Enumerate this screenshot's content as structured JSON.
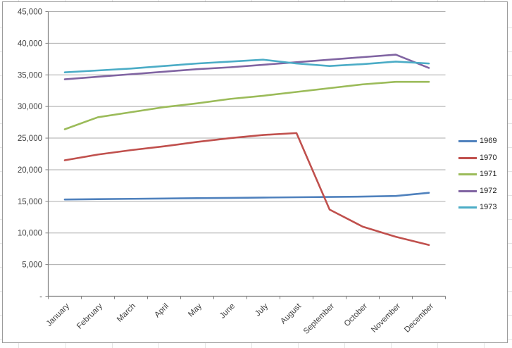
{
  "chart_data": {
    "type": "line",
    "title": "",
    "xlabel": "",
    "ylabel": "",
    "categories": [
      "January",
      "February",
      "March",
      "April",
      "May",
      "June",
      "July",
      "August",
      "September",
      "October",
      "November",
      "December"
    ],
    "series": [
      {
        "name": "1969",
        "color": "#4F81BD",
        "values": [
          15300,
          15350,
          15400,
          15450,
          15500,
          15550,
          15600,
          15650,
          15700,
          15750,
          15850,
          16350
        ]
      },
      {
        "name": "1970",
        "color": "#C0504D",
        "values": [
          21500,
          22400,
          23100,
          23700,
          24400,
          25000,
          25500,
          25800,
          13700,
          11000,
          9400,
          8100
        ]
      },
      {
        "name": "1971",
        "color": "#9BBB59",
        "values": [
          26400,
          28300,
          29100,
          29900,
          30500,
          31200,
          31700,
          32300,
          32900,
          33500,
          33900,
          33900
        ]
      },
      {
        "name": "1972",
        "color": "#8064A2",
        "values": [
          34300,
          34700,
          35100,
          35500,
          35900,
          36200,
          36600,
          37000,
          37400,
          37800,
          38200,
          36100
        ]
      },
      {
        "name": "1973",
        "color": "#4BACC6",
        "values": [
          35400,
          35700,
          36000,
          36400,
          36800,
          37100,
          37400,
          36800,
          36400,
          36700,
          37100,
          36800
        ]
      }
    ],
    "ylim": [
      0,
      45000
    ],
    "ytick_interval": 5000,
    "ytick_labels_top_down": [
      "45,000",
      "40,000",
      "35,000",
      "30,000",
      "25,000",
      "20,000",
      "15,000",
      "10,000",
      "5,000",
      "-"
    ],
    "grid": "horizontal-major",
    "legend_position": "right",
    "x_labels_rotation_deg": -45
  },
  "legend": {
    "items": [
      "1969",
      "1970",
      "1971",
      "1972",
      "1973"
    ]
  },
  "style_colors": {
    "gridline": "#ababab",
    "axis": "#7f7f7f",
    "tick_text": "#3f3f3f",
    "frame_border": "#9b9b9b",
    "worksheet_line": "#e3e3e3",
    "background": "#ffffff"
  }
}
